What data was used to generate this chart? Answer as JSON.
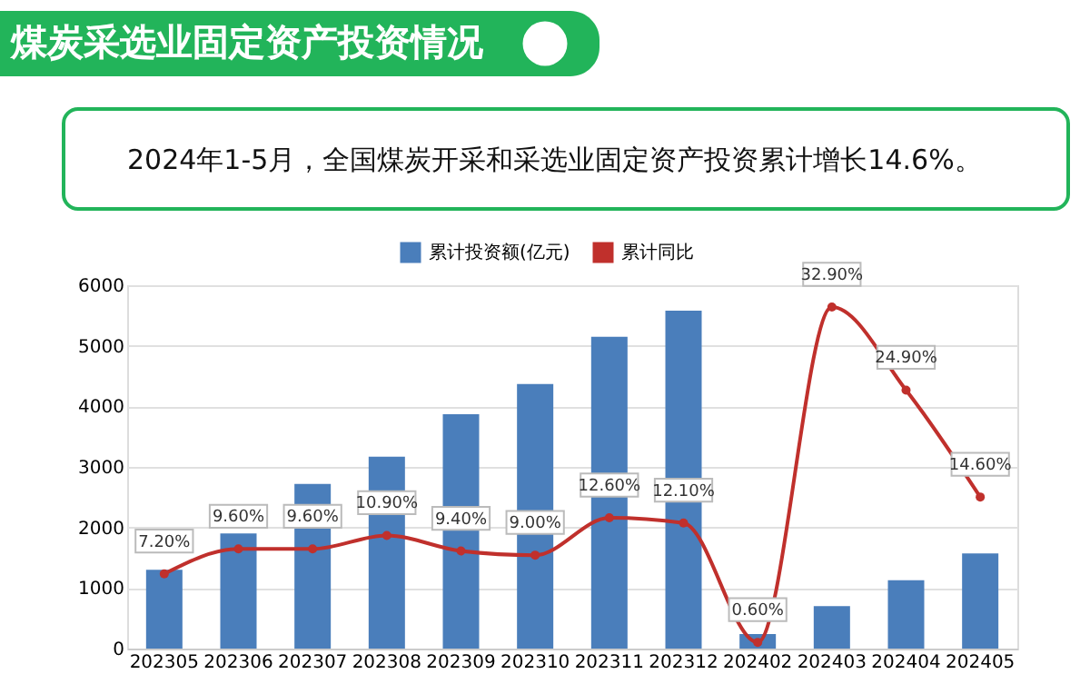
{
  "chart_data": {
    "type": "bar",
    "title": "煤炭采选业固定资产投资情况",
    "subtitle": "2024年1-5月，全国煤炭开采和采选业固定资产投资累计增长14.6%。",
    "categories": [
      "202305",
      "202306",
      "202307",
      "202308",
      "202309",
      "202310",
      "202311",
      "202312",
      "202402",
      "202403",
      "202404",
      "202405"
    ],
    "series": [
      {
        "name": "累计投资额(亿元)",
        "color": "#4a7ebb",
        "values": [
          1300,
          1900,
          2720,
          3170,
          3870,
          4370,
          5150,
          5580,
          240,
          700,
          1130,
          1570
        ]
      },
      {
        "name": "累计同比",
        "type": "line",
        "axis": "y2",
        "color": "#c0302c",
        "marker": "circle",
        "data_labels": true,
        "value_labels": [
          "7.20%",
          "9.60%",
          "9.60%",
          "10.90%",
          "9.40%",
          "9.00%",
          "12.60%",
          "12.10%",
          "0.60%",
          "32.90%",
          "24.90%",
          "14.60%"
        ],
        "values": [
          7.2,
          9.6,
          9.6,
          10.9,
          9.4,
          9.0,
          12.6,
          12.1,
          0.6,
          32.9,
          24.9,
          14.6
        ]
      }
    ],
    "ylim": [
      0,
      6000
    ],
    "yticks": [
      0,
      1000,
      2000,
      3000,
      4000,
      5000,
      6000
    ],
    "y2lim": [
      0,
      35
    ],
    "grid": "y",
    "legend": "top"
  }
}
